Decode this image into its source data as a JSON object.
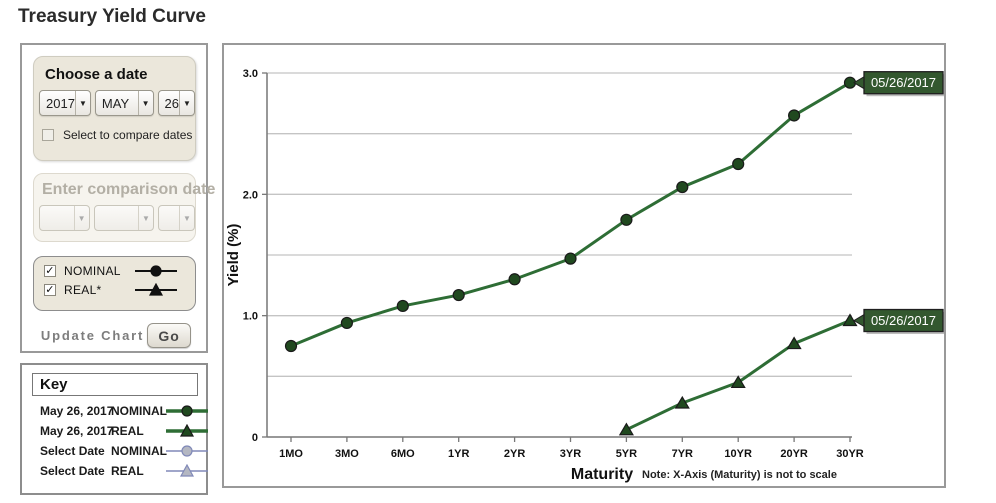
{
  "page_title": "Treasury Yield Curve",
  "colors": {
    "series_green": "#2e6d35",
    "marker_green": "#20491f",
    "marker_stroke": "#1a1a1a",
    "callout_fill": "#33582f",
    "callout_border": "#1f1f1f",
    "callout_text": "#ffffff",
    "inactive_line": "#8089b8",
    "inactive_fill": "#b4b7c2",
    "grid": "#c4c4c4",
    "axis": "#777777",
    "toggle_symbol": "#111111"
  },
  "sidebar": {
    "choose_date": {
      "title": "Choose a date",
      "year": "2017",
      "month": "MAY",
      "day": "26",
      "compare_label": "Select to compare dates",
      "compare_checked": false
    },
    "comparison": {
      "title": "Enter comparison date",
      "year": "",
      "month": "",
      "day": ""
    },
    "series_toggles": [
      {
        "label": "NOMINAL",
        "checked": true,
        "marker": "circle"
      },
      {
        "label": "REAL*",
        "checked": true,
        "marker": "triangle"
      }
    ],
    "update": {
      "label": "Update Chart",
      "button": "Go"
    }
  },
  "key": {
    "title": "Key",
    "entries": [
      {
        "date": "May 26, 2017",
        "series": "NOMINAL",
        "marker": "circle",
        "style": "active"
      },
      {
        "date": "May 26, 2017",
        "series": "REAL",
        "marker": "triangle",
        "style": "active"
      },
      {
        "date": "Select Date",
        "series": "NOMINAL",
        "marker": "circle",
        "style": "inactive"
      },
      {
        "date": "Select Date",
        "series": "REAL",
        "marker": "triangle",
        "style": "inactive"
      }
    ]
  },
  "chart_data": {
    "type": "line",
    "categories": [
      "1MO",
      "3MO",
      "6MO",
      "1YR",
      "2YR",
      "3YR",
      "5YR",
      "7YR",
      "10YR",
      "20YR",
      "30YR"
    ],
    "series": [
      {
        "name": "NOMINAL",
        "callout_label": "05/26/2017",
        "marker": "circle",
        "values": [
          0.75,
          0.94,
          1.08,
          1.17,
          1.3,
          1.47,
          1.79,
          2.06,
          2.25,
          2.65,
          2.92
        ]
      },
      {
        "name": "REAL",
        "callout_label": "05/26/2017",
        "marker": "triangle",
        "values": [
          null,
          null,
          null,
          null,
          null,
          null,
          0.06,
          0.28,
          0.45,
          0.77,
          0.96
        ]
      }
    ],
    "ylabel": "Yield (%)",
    "xlabel": "Maturity",
    "note": "Note: X-Axis (Maturity) is not to scale",
    "ylim": [
      0,
      3.0
    ],
    "yticks": [
      0,
      1,
      2,
      3
    ],
    "ytick_labels": [
      "0",
      "1.0",
      "2.0",
      "3.0"
    ],
    "gridline_step": 0.5,
    "grid": true,
    "legend_position": "none"
  }
}
